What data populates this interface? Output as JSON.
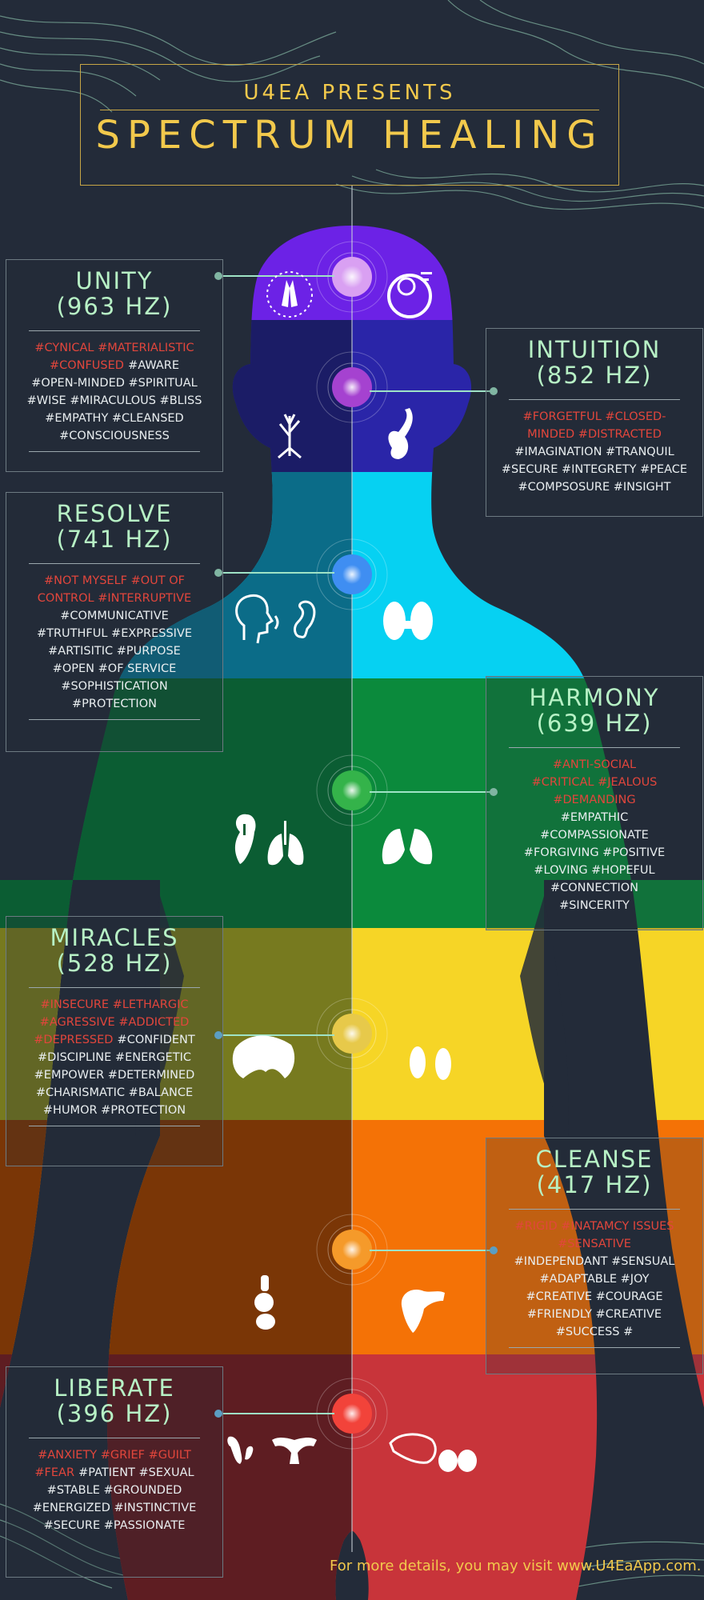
{
  "header": {
    "subtitle": "U4EA PRESENTS",
    "title": "SPECTRUM HEALING"
  },
  "colors": {
    "background": "#232b39",
    "accent_gold": "#f2c94c",
    "title_mint": "#b7f1c5",
    "negative_red": "#e2463c",
    "positive_white": "#e9eef0"
  },
  "panels": [
    {
      "title": "UNITY",
      "freq": "(963 HZ)",
      "lines": [
        "#CYNICAL #MATERIALISTIC",
        "#CONFUSED",
        "#AWARE",
        "#OPEN-MINDED #SPIRITUAL",
        "#WISE #MIRACULOUS #BLISS",
        "#EMPATHY  #CLEANSED",
        "#CONSCIOUSNESS"
      ]
    },
    {
      "title": "INTUITION",
      "freq": "(852 HZ)",
      "lines": [
        "#FORGETFUL #CLOSED-",
        "MINDED #DISTRACTED",
        "#IMAGINATION #TRANQUIL",
        "#SECURE #INTEGRETY #PEACE",
        "#COMPSOSURE #INSIGHT"
      ]
    },
    {
      "title": "RESOLVE",
      "freq": "(741 HZ)",
      "lines": [
        "#NOT MYSELF #OUT OF",
        "CONTROL #INTERRUPTIVE",
        "#COMMUNICATIVE",
        "#TRUTHFUL #EXPRESSIVE",
        "#ARTISITIC #PURPOSE",
        "#OPEN #OF SERVICE",
        "#SOPHISTICATION",
        "#PROTECTION"
      ]
    },
    {
      "title": "HARMONY",
      "freq": "(639 HZ)",
      "lines": [
        "#ANTI-SOCIAL",
        "#CRITICAL #JEALOUS",
        "#DEMANDING",
        "#EMPATHIC",
        "#COMPASSIONATE",
        "#FORGIVING #POSITIVE",
        "#LOVING #HOPEFUL",
        "#CONNECTION",
        "#SINCERITY"
      ]
    },
    {
      "title": "MIRACLES",
      "freq": "(528 HZ)",
      "lines": [
        "#INSECURE #LETHARGIC",
        "#AGRESSIVE #ADDICTED",
        "#DEPRESSED",
        "#CONFIDENT",
        "#DISCIPLINE #ENERGETIC",
        "#EMPOWER #DETERMINED",
        "#CHARISMATIC #BALANCE",
        "#HUMOR #PROTECTION"
      ]
    },
    {
      "title": "CLEANSE",
      "freq": "(417 HZ)",
      "lines": [
        "#RIGID #INATAMCY ISSUES",
        "#SENSATIVE",
        "#INDEPENDANT #SENSUAL",
        "#ADAPTABLE #JOY",
        "#CREATIVE #COURAGE",
        "#FRIENDLY #CREATIVE",
        "#SUCCESS #"
      ]
    },
    {
      "title": "LIBERATE",
      "freq": "(396 HZ)",
      "lines": [
        "#ANXIETY #GRIEF #GUILT",
        "#FEAR",
        "#PATIENT #SEXUAL",
        "#STABLE #GROUNDED",
        "#ENERGIZED #INSTINCTIVE",
        "#SECURE #PASSIONATE"
      ]
    }
  ],
  "footer": {
    "text": "For more details, you may visit www.U4EaApp.com."
  }
}
